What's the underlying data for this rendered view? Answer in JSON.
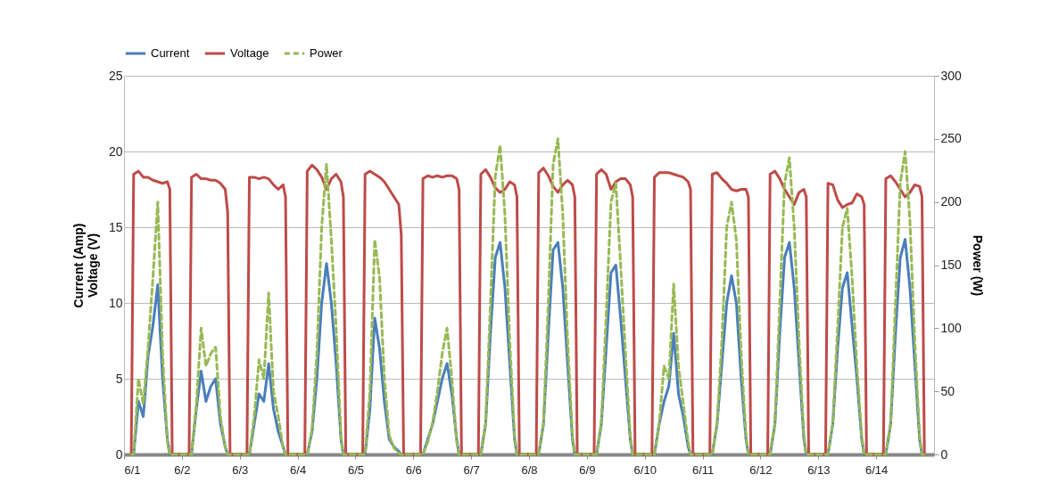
{
  "chart_data": {
    "type": "line",
    "ylabel": "Current (Amp)\nVoltage (V)",
    "y2label": "Power (W)",
    "legend": "top",
    "grid": "y",
    "xlim": [
      "--06-01T00:00",
      "--06-15T00:00"
    ],
    "xticks": [
      {
        "value": "--06-01",
        "label": "6/1"
      },
      {
        "value": "--06-02",
        "label": "6/2"
      },
      {
        "value": "--06-03",
        "label": "6/3"
      },
      {
        "value": "--06-04",
        "label": "6/4"
      },
      {
        "value": "--06-05",
        "label": "6/5"
      },
      {
        "value": "--06-06",
        "label": "6/6"
      },
      {
        "value": "--06-07",
        "label": "6/7"
      },
      {
        "value": "--06-08",
        "label": "6/8"
      },
      {
        "value": "--06-09",
        "label": "6/9"
      },
      {
        "value": "--06-10",
        "label": "6/10"
      },
      {
        "value": "--06-11",
        "label": "6/11"
      },
      {
        "value": "--06-12",
        "label": "6/12"
      },
      {
        "value": "--06-13",
        "label": "6/13"
      },
      {
        "value": "--06-14",
        "label": "6/14"
      }
    ],
    "ylim": [
      0,
      25
    ],
    "yticks": [
      0,
      5,
      10,
      15,
      20,
      25
    ],
    "y2lim": [
      0,
      300
    ],
    "y2ticks": [
      0,
      50,
      100,
      150,
      200,
      250,
      300
    ],
    "x": [
      "--06-01T03:00",
      "--06-01T04:00",
      "--06-01T06:00",
      "--06-01T08:00",
      "--06-01T10:00",
      "--06-01T12:00",
      "--06-01T14:00",
      "--06-01T16:00",
      "--06-01T18:00",
      "--06-01T19:00",
      "--06-01T20:00",
      "--06-02T03:00",
      "--06-02T04:00",
      "--06-02T06:00",
      "--06-02T08:00",
      "--06-02T10:00",
      "--06-02T12:00",
      "--06-02T14:00",
      "--06-02T16:00",
      "--06-02T18:00",
      "--06-02T19:00",
      "--06-02T20:00",
      "--06-03T03:00",
      "--06-03T04:00",
      "--06-03T06:00",
      "--06-03T08:00",
      "--06-03T10:00",
      "--06-03T12:00",
      "--06-03T14:00",
      "--06-03T16:00",
      "--06-03T18:00",
      "--06-03T19:00",
      "--06-03T20:00",
      "--06-04T03:00",
      "--06-04T04:00",
      "--06-04T06:00",
      "--06-04T08:00",
      "--06-04T10:00",
      "--06-04T12:00",
      "--06-04T14:00",
      "--06-04T16:00",
      "--06-04T18:00",
      "--06-04T19:00",
      "--06-04T20:00",
      "--06-05T03:00",
      "--06-05T04:00",
      "--06-05T06:00",
      "--06-05T08:00",
      "--06-05T10:00",
      "--06-05T12:00",
      "--06-05T14:00",
      "--06-05T16:00",
      "--06-05T18:00",
      "--06-05T19:00",
      "--06-05T20:00",
      "--06-06T03:00",
      "--06-06T04:00",
      "--06-06T06:00",
      "--06-06T08:00",
      "--06-06T10:00",
      "--06-06T12:00",
      "--06-06T14:00",
      "--06-06T16:00",
      "--06-06T18:00",
      "--06-06T19:00",
      "--06-06T20:00",
      "--06-07T03:00",
      "--06-07T04:00",
      "--06-07T06:00",
      "--06-07T08:00",
      "--06-07T10:00",
      "--06-07T12:00",
      "--06-07T14:00",
      "--06-07T16:00",
      "--06-07T18:00",
      "--06-07T19:00",
      "--06-07T20:00",
      "--06-08T03:00",
      "--06-08T04:00",
      "--06-08T06:00",
      "--06-08T08:00",
      "--06-08T10:00",
      "--06-08T12:00",
      "--06-08T14:00",
      "--06-08T16:00",
      "--06-08T18:00",
      "--06-08T19:00",
      "--06-08T20:00",
      "--06-09T03:00",
      "--06-09T04:00",
      "--06-09T06:00",
      "--06-09T08:00",
      "--06-09T10:00",
      "--06-09T12:00",
      "--06-09T14:00",
      "--06-09T16:00",
      "--06-09T18:00",
      "--06-09T19:00",
      "--06-09T20:00",
      "--06-10T03:00",
      "--06-10T04:00",
      "--06-10T06:00",
      "--06-10T08:00",
      "--06-10T10:00",
      "--06-10T12:00",
      "--06-10T14:00",
      "--06-10T16:00",
      "--06-10T18:00",
      "--06-10T19:00",
      "--06-10T20:00",
      "--06-11T03:00",
      "--06-11T04:00",
      "--06-11T06:00",
      "--06-11T08:00",
      "--06-11T10:00",
      "--06-11T12:00",
      "--06-11T14:00",
      "--06-11T16:00",
      "--06-11T18:00",
      "--06-11T19:00",
      "--06-11T20:00",
      "--06-12T03:00",
      "--06-12T04:00",
      "--06-12T06:00",
      "--06-12T08:00",
      "--06-12T10:00",
      "--06-12T12:00",
      "--06-12T14:00",
      "--06-12T16:00",
      "--06-12T18:00",
      "--06-12T19:00",
      "--06-12T20:00",
      "--06-13T03:00",
      "--06-13T04:00",
      "--06-13T06:00",
      "--06-13T08:00",
      "--06-13T10:00",
      "--06-13T12:00",
      "--06-13T14:00",
      "--06-13T16:00",
      "--06-13T18:00",
      "--06-13T19:00",
      "--06-13T20:00",
      "--06-14T03:00",
      "--06-14T04:00",
      "--06-14T06:00",
      "--06-14T08:00",
      "--06-14T10:00",
      "--06-14T12:00",
      "--06-14T14:00",
      "--06-14T16:00",
      "--06-14T18:00",
      "--06-14T19:00",
      "--06-14T20:00"
    ],
    "series": [
      {
        "name": "Current",
        "color": "#4a7ebb",
        "line_style": "solid",
        "values": [
          0,
          0,
          3.5,
          2.5,
          6.5,
          8.5,
          11.2,
          5,
          1,
          0,
          0,
          0,
          0,
          3,
          5.5,
          3.5,
          4.5,
          5,
          2,
          0.5,
          0,
          0,
          0,
          0,
          2,
          4,
          3.5,
          6,
          3,
          1.5,
          0.5,
          0,
          0,
          0,
          0,
          1.5,
          5,
          10,
          12.6,
          10,
          6,
          1,
          0,
          0,
          0,
          0,
          3,
          9,
          7,
          3.5,
          1,
          0.5,
          0.2,
          0,
          0,
          0,
          0,
          1,
          2,
          3.5,
          5,
          6,
          4,
          1,
          0,
          0,
          0,
          0,
          2,
          8,
          13,
          14,
          11,
          6,
          1,
          0,
          0,
          0,
          0,
          2,
          8,
          13.5,
          14,
          11,
          6,
          1,
          0,
          0,
          0,
          0,
          2,
          7,
          12,
          12.5,
          9,
          5,
          1,
          0,
          0,
          0,
          0,
          2,
          3.5,
          4.5,
          8,
          4,
          2.5,
          0.5,
          0,
          0,
          0,
          0,
          2,
          6,
          10,
          11.8,
          10,
          5,
          1,
          0,
          0,
          0,
          0,
          2,
          8,
          13,
          14,
          11,
          6,
          1,
          0,
          0,
          0,
          0,
          2,
          7,
          11,
          12,
          8.5,
          5,
          1,
          0,
          0,
          0,
          0,
          2,
          8,
          13,
          14.2,
          11,
          6,
          1,
          0,
          0
        ]
      },
      {
        "name": "Voltage",
        "color": "#be4b48",
        "line_style": "solid",
        "values": [
          0,
          18.5,
          18.7,
          18.3,
          18.3,
          18.1,
          18,
          17.9,
          18,
          17.5,
          0,
          0,
          18.3,
          18.5,
          18.2,
          18.2,
          18.1,
          18.1,
          17.9,
          17.5,
          16,
          0,
          0,
          18.3,
          18.3,
          18.2,
          18.3,
          18.2,
          17.8,
          17.5,
          17.8,
          17,
          0,
          0,
          18.7,
          19.1,
          18.8,
          18.3,
          17.5,
          18.2,
          18.5,
          18,
          17,
          0,
          0,
          18.5,
          18.7,
          18.5,
          18.3,
          18,
          17.5,
          17,
          16.5,
          14.5,
          0,
          0,
          18.2,
          18.4,
          18.3,
          18.4,
          18.3,
          18.4,
          18.4,
          18.2,
          17.5,
          0,
          0,
          18.5,
          18.8,
          18.3,
          17.6,
          17.3,
          17.5,
          18,
          17.8,
          17,
          0,
          0,
          18.6,
          18.9,
          18.4,
          17.7,
          17.3,
          17.8,
          18.1,
          17.8,
          17,
          0,
          0,
          18.5,
          18.8,
          18.5,
          17.5,
          18,
          18.2,
          18.2,
          17.8,
          17,
          0,
          0,
          18.3,
          18.6,
          18.6,
          18.6,
          18.5,
          18.4,
          18.3,
          18,
          17.5,
          0,
          0,
          18.5,
          18.6,
          18.2,
          17.9,
          17.5,
          17.4,
          17.5,
          17.5,
          17,
          0,
          0,
          18.5,
          18.7,
          18.2,
          17.5,
          17,
          16.5,
          17.3,
          17.5,
          17,
          0,
          0,
          17.9,
          17.8,
          16.8,
          16.3,
          16.5,
          16.6,
          17.2,
          17,
          16.5,
          0,
          0,
          18.2,
          18.4,
          18,
          17.5,
          17,
          17.3,
          17.8,
          17.7,
          17,
          0
        ]
      },
      {
        "name": "Power",
        "color": "#98b954",
        "line_style": "dashed",
        "axis": "y2",
        "values": [
          0,
          0,
          60,
          40,
          85,
          140,
          200,
          80,
          10,
          0,
          0,
          0,
          0,
          40,
          100,
          70,
          80,
          85,
          30,
          5,
          0,
          0,
          0,
          0,
          30,
          75,
          60,
          128,
          50,
          30,
          5,
          0,
          0,
          0,
          0,
          20,
          80,
          180,
          230,
          170,
          100,
          15,
          0,
          0,
          0,
          0,
          50,
          170,
          140,
          60,
          15,
          5,
          1,
          0,
          0,
          0,
          0,
          10,
          25,
          50,
          80,
          100,
          60,
          10,
          0,
          0,
          0,
          0,
          25,
          120,
          220,
          245,
          190,
          90,
          15,
          0,
          0,
          0,
          0,
          25,
          120,
          230,
          250,
          190,
          90,
          15,
          0,
          0,
          0,
          0,
          25,
          110,
          200,
          215,
          150,
          80,
          15,
          0,
          0,
          0,
          0,
          25,
          70,
          60,
          135,
          70,
          40,
          10,
          0,
          0,
          0,
          0,
          25,
          90,
          180,
          200,
          170,
          80,
          15,
          0,
          0,
          0,
          0,
          25,
          120,
          215,
          235,
          180,
          90,
          15,
          0,
          0,
          0,
          0,
          25,
          100,
          180,
          195,
          140,
          70,
          15,
          0,
          0,
          0,
          0,
          25,
          120,
          215,
          240,
          185,
          90,
          15,
          0,
          0
        ]
      }
    ]
  }
}
